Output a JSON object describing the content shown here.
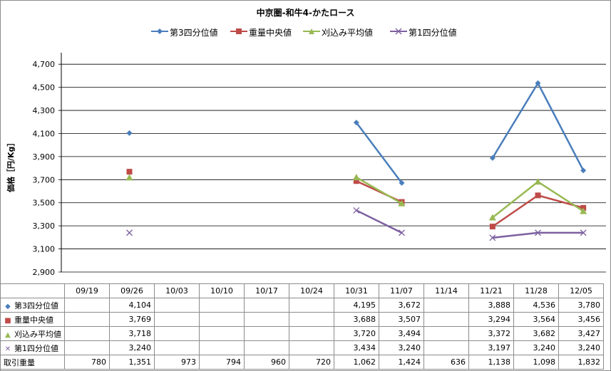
{
  "chart_data": {
    "type": "line",
    "title": "中京圏-和牛4-かたロース",
    "ylabel": "価格［円/Kg］",
    "ylim": [
      2900,
      4800
    ],
    "yticks": [
      2900,
      3100,
      3300,
      3500,
      3700,
      3900,
      4100,
      4300,
      4500,
      4700
    ],
    "ytick_labels": [
      "2,900",
      "3,100",
      "3,300",
      "3,500",
      "3,700",
      "3,900",
      "4,100",
      "4,300",
      "4,500",
      "4,700"
    ],
    "categories": [
      "09/19",
      "09/26",
      "10/03",
      "10/10",
      "10/17",
      "10/24",
      "10/31",
      "11/07",
      "11/14",
      "11/21",
      "11/28",
      "12/05"
    ],
    "legend_position": "top",
    "grid": "horizontal",
    "series": [
      {
        "name": "第3四分位値",
        "color": "#4a7ebb",
        "marker": "diamond",
        "values": [
          null,
          4104,
          null,
          null,
          null,
          null,
          4195,
          3672,
          null,
          3888,
          4536,
          3780
        ],
        "labels": [
          "",
          "4,104",
          "",
          "",
          "",
          "",
          "4,195",
          "3,672",
          "",
          "3,888",
          "4,536",
          "3,780"
        ]
      },
      {
        "name": "重量中央値",
        "color": "#be4b48",
        "marker": "square",
        "values": [
          null,
          3769,
          null,
          null,
          null,
          null,
          3688,
          3507,
          null,
          3294,
          3564,
          3456
        ],
        "labels": [
          "",
          "3,769",
          "",
          "",
          "",
          "",
          "3,688",
          "3,507",
          "",
          "3,294",
          "3,564",
          "3,456"
        ]
      },
      {
        "name": "刈込み平均値",
        "color": "#98b954",
        "marker": "triangle",
        "values": [
          null,
          3718,
          null,
          null,
          null,
          null,
          3720,
          3494,
          null,
          3372,
          3682,
          3427
        ],
        "labels": [
          "",
          "3,718",
          "",
          "",
          "",
          "",
          "3,720",
          "3,494",
          "",
          "3,372",
          "3,682",
          "3,427"
        ]
      },
      {
        "name": "第1四分位値",
        "color": "#7d60a0",
        "marker": "x",
        "values": [
          null,
          3240,
          null,
          null,
          null,
          null,
          3434,
          3240,
          null,
          3197,
          3240,
          3240
        ],
        "labels": [
          "",
          "3,240",
          "",
          "",
          "",
          "",
          "3,434",
          "3,240",
          "",
          "3,197",
          "3,240",
          "3,240"
        ]
      }
    ],
    "extra_row": {
      "name": "取引重量",
      "labels": [
        "780",
        "1,351",
        "973",
        "794",
        "960",
        "720",
        "1,062",
        "1,424",
        "636",
        "1,138",
        "1,098",
        "1,832"
      ]
    }
  }
}
